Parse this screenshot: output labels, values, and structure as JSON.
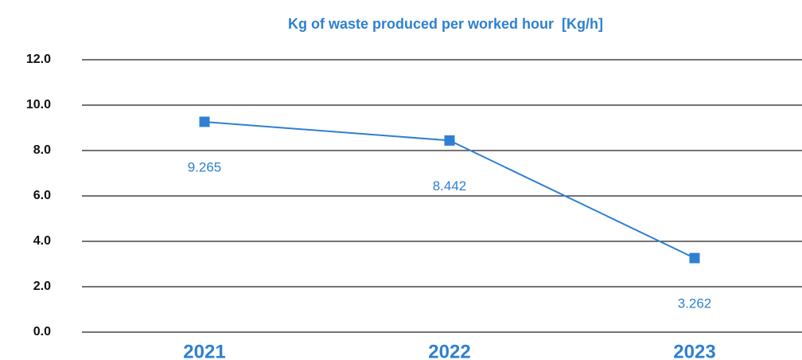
{
  "chart_data": {
    "type": "line",
    "title": "Kg of waste produced per worked hour  [Kg/h]",
    "categories": [
      "2021",
      "2022",
      "2023"
    ],
    "series": [
      {
        "color": "#2f80d0",
        "values": [
          9.265,
          8.442,
          3.262
        ]
      }
    ],
    "ylim": [
      0,
      12
    ],
    "yticks": [
      {
        "value": 0,
        "label": "0.0"
      },
      {
        "value": 2,
        "label": "2.0"
      },
      {
        "value": 4,
        "label": "4.0"
      },
      {
        "value": 6,
        "label": "6.0"
      },
      {
        "value": 8,
        "label": "8.0"
      },
      {
        "value": 10,
        "label": "10.0"
      },
      {
        "value": 12,
        "label": "12.0"
      }
    ],
    "grid": true
  }
}
